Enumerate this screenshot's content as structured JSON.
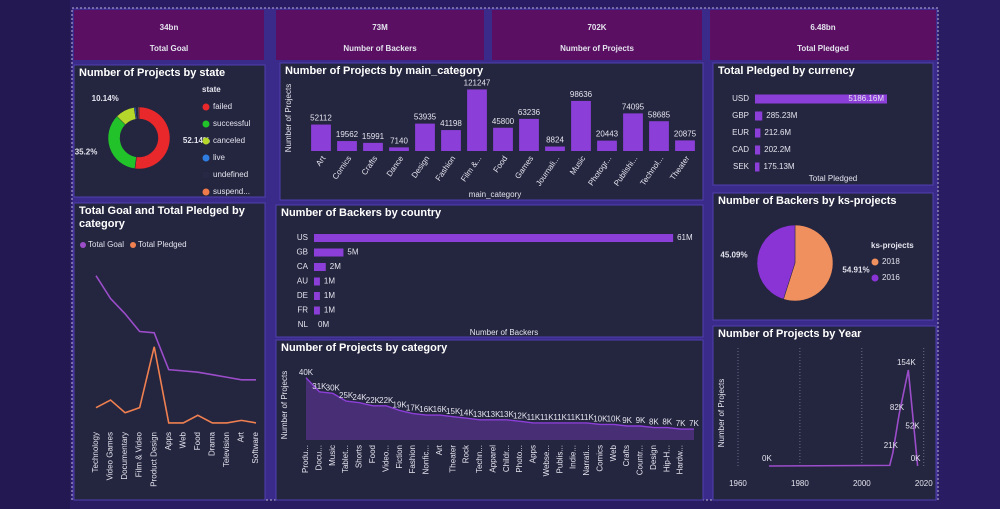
{
  "cards": [
    {
      "value": "34bn",
      "label": "Total Goal"
    },
    {
      "value": "73M",
      "label": "Number of Backers"
    },
    {
      "value": "702K",
      "label": "Number of Projects"
    },
    {
      "value": "6.48bn",
      "label": "Total Pledged"
    }
  ],
  "chart_data": [
    {
      "type": "donut",
      "title": "Number of Projects by state",
      "legend_title": "state",
      "categories": [
        "failed",
        "successful",
        "canceled",
        "live",
        "undefined",
        "suspend..."
      ],
      "values": [
        52.14,
        35.2,
        10.14,
        0.74,
        1.3,
        0.48
      ],
      "value_labels": [
        "52.14%",
        "35.2%",
        "10.14%",
        null,
        null,
        null
      ],
      "colors": [
        "#e8282b",
        "#22c22a",
        "#b5d62a",
        "#2f7de1",
        "#262844",
        "#f07a4a"
      ]
    },
    {
      "type": "bar",
      "title": "Number of Projects by main_category",
      "y_label": "Number of Projects",
      "x_label": "main_category",
      "categories": [
        "Art",
        "Comics",
        "Crafts",
        "Dance",
        "Design",
        "Fashion",
        "Film &...",
        "Food",
        "Games",
        "Journali...",
        "Music",
        "Photogr...",
        "Publishi...",
        "Technol...",
        "Theater"
      ],
      "values": [
        52112,
        19562,
        15991,
        7140,
        53935,
        41198,
        121247,
        45800,
        63236,
        8824,
        98636,
        20443,
        74095,
        58685,
        20875
      ],
      "color": "#8c3fd8",
      "ylim": [
        0,
        130000
      ]
    },
    {
      "type": "hbar",
      "title": "Total Pledged by currency",
      "x_label": "Total Pledged",
      "categories": [
        "USD",
        "GBP",
        "EUR",
        "CAD",
        "SEK"
      ],
      "values": [
        5186.16,
        285.23,
        212.6,
        202.2,
        175.13
      ],
      "value_labels": [
        "5186.16M",
        "285.23M",
        "212.6M",
        "202.2M",
        "175.13M"
      ],
      "color": "#8c3fd8",
      "xlim": [
        0,
        5500
      ]
    },
    {
      "type": "line",
      "title": "Total Goal and Total Pledged by category",
      "categories": [
        "Technology",
        "Video Games",
        "Documentary",
        "Film & Video",
        "Product Design",
        "Apps",
        "Web",
        "Food",
        "Drama",
        "Television",
        "Art",
        "Software"
      ],
      "series": [
        {
          "name": "Total Goal",
          "color": "#9b4dca",
          "values": [
            6.0,
            5.1,
            4.5,
            3.8,
            3.75,
            2.3,
            2.25,
            2.2,
            2.1,
            2.0,
            1.9,
            1.9
          ]
        },
        {
          "name": "Total Pledged",
          "color": "#f08050",
          "values": [
            0.8,
            1.1,
            0.6,
            0.8,
            3.2,
            0.2,
            0.2,
            0.5,
            0.2,
            0.2,
            0.3,
            0.2
          ]
        }
      ],
      "ylim": [
        0,
        6.5
      ]
    },
    {
      "type": "hbar",
      "title": "Number of Backers by country",
      "x_label": "Number of Backers",
      "categories": [
        "US",
        "GB",
        "CA",
        "AU",
        "DE",
        "FR",
        "NL"
      ],
      "values": [
        61,
        5,
        2,
        1,
        1,
        1,
        0
      ],
      "value_labels": [
        "61M",
        "5M",
        "2M",
        "1M",
        "1M",
        "1M",
        "0M"
      ],
      "color": "#8c3fd8",
      "xlim": [
        0,
        62
      ]
    },
    {
      "type": "pie",
      "title": "Number of Backers by ks-projects",
      "legend_title": "ks-projects",
      "categories": [
        "2018",
        "2016"
      ],
      "values": [
        54.91,
        45.09
      ],
      "value_labels": [
        "54.91%",
        "45.09%"
      ],
      "colors": [
        "#f0905e",
        "#8a34d6"
      ]
    },
    {
      "type": "area",
      "title": "Number of Projects by category",
      "y_label": "Number of Projects",
      "categories": [
        "Produ...",
        "Docu...",
        "Music",
        "Tablet...",
        "Shorts",
        "Food",
        "Video...",
        "Fiction",
        "Fashion",
        "Nonfic...",
        "Art",
        "Theater",
        "Rock",
        "Techn...",
        "Apparel",
        "Childr...",
        "Photo...",
        "Apps",
        "Webse...",
        "Publis...",
        "Indie...",
        "Narrati...",
        "Comics",
        "Web",
        "Crafts",
        "Countr...",
        "Design",
        "Hip-H...",
        "Hardw...",
        null
      ],
      "values": [
        40,
        31,
        30,
        25,
        24,
        22,
        22,
        19,
        17,
        16,
        16,
        15,
        14,
        13,
        13,
        13,
        12,
        11,
        11,
        11,
        11,
        11,
        10,
        10,
        9,
        9,
        8,
        8,
        7,
        7
      ],
      "value_labels": [
        "40K",
        "31K",
        "30K",
        "25K",
        "24K",
        "22K",
        "22K",
        "19K",
        "17K",
        "16K",
        "16K",
        "15K",
        "14K",
        "13K",
        "13K",
        "13K",
        "12K",
        "11K",
        "11K",
        "11K",
        "11K",
        "11K",
        "10K",
        "10K",
        "9K",
        "9K",
        "8K",
        "8K",
        "7K",
        "7K"
      ],
      "color": "#8c3fd8",
      "ylim": [
        0,
        45
      ]
    },
    {
      "type": "line",
      "title": "Number of Projects by Year",
      "y_label": "Number of Projects",
      "x": [
        1970,
        2009,
        2010,
        2012,
        2015,
        2017,
        2018
      ],
      "values": [
        0,
        1,
        21,
        82,
        154,
        52,
        0
      ],
      "value_labels": [
        "0K",
        null,
        "21K",
        "82K",
        "154K",
        "52K",
        "0K"
      ],
      "color": "#9b4dca",
      "xlim": [
        1955,
        2022
      ],
      "ylim": [
        0,
        170
      ],
      "xticks": [
        1960,
        1980,
        2000,
        2020
      ],
      "grid": true
    }
  ]
}
